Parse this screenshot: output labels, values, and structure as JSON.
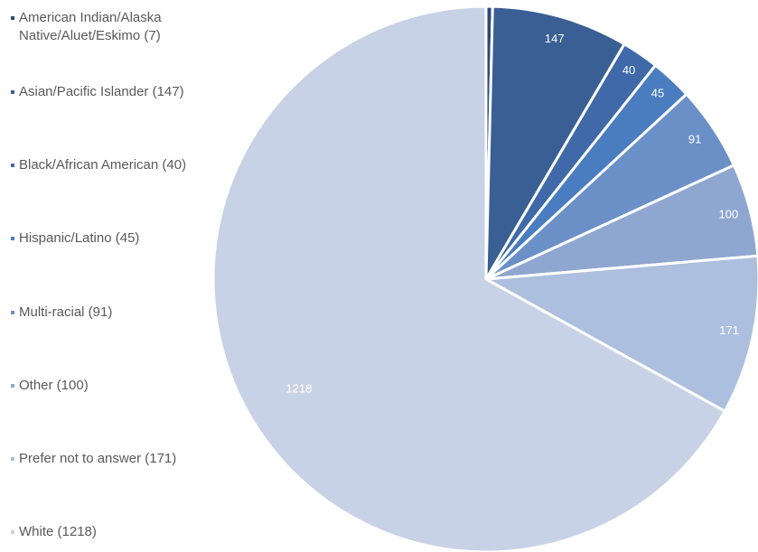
{
  "chart_data": {
    "type": "pie",
    "categories": [
      "American Indian/Alaska Native/Aluet/Eskimo (7)",
      "Asian/Pacific Islander (147)",
      "Black/African American (40)",
      "Hispanic/Latino (45)",
      "Multi-racial (91)",
      "Other (100)",
      "Prefer not to answer (171)",
      "White (1218)"
    ],
    "values": [
      7,
      147,
      40,
      45,
      91,
      100,
      171,
      1218
    ],
    "colors": [
      "#2c4a78",
      "#3a5f94",
      "#3f69a8",
      "#4a7cc0",
      "#6b90c8",
      "#8fa7d0",
      "#adbfde",
      "#c8d2e6"
    ],
    "legend": "left",
    "data_labels": true
  }
}
